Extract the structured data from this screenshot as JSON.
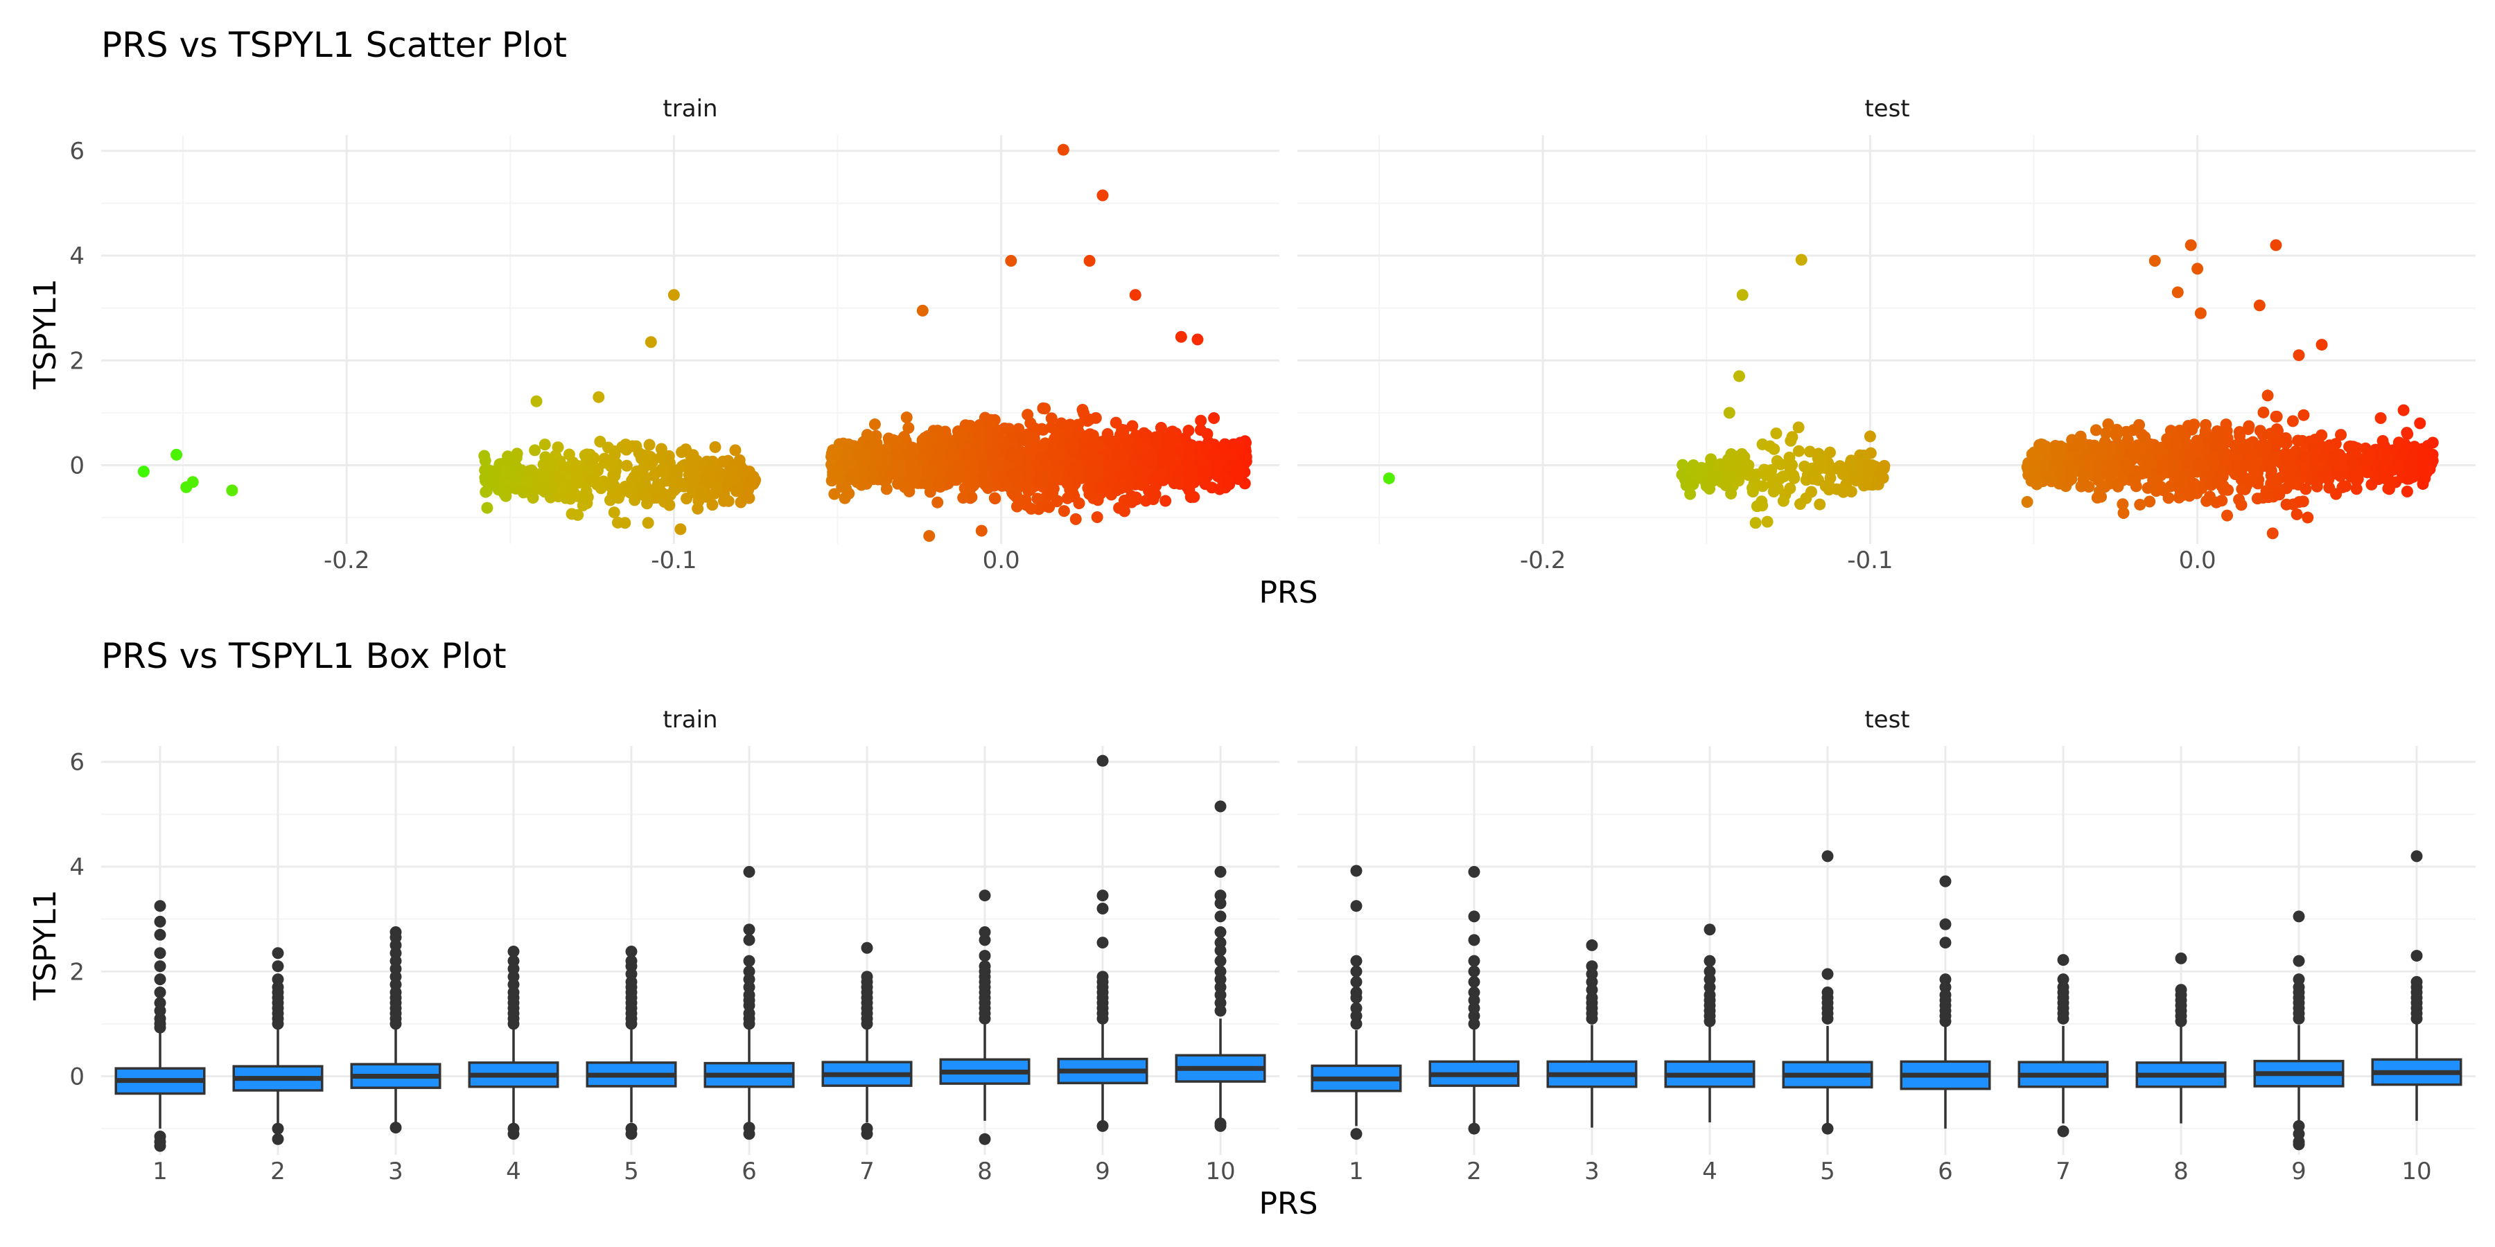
{
  "colors": {
    "background": "#ffffff",
    "grid_major": "#ebebeb",
    "grid_minor": "#f4f4f4",
    "box_fill": "#1e90ff",
    "box_line": "#333333",
    "scatter_low": "#33ff00",
    "scatter_mid": "#c8b400",
    "scatter_high": "#ff1a00"
  },
  "chart_data": [
    {
      "type": "scatter",
      "title": "PRS vs TSPYL1 Scatter Plot",
      "xlabel": "PRS",
      "ylabel": "TSPYL1",
      "facets": [
        "train",
        "test"
      ],
      "xlim": [
        -0.275,
        0.085
      ],
      "ylim": [
        -1.5,
        6.3
      ],
      "x_ticks": [
        -0.2,
        -0.1,
        0.0
      ],
      "x_tick_labels": [
        "-0.2",
        "-0.1",
        "0.0"
      ],
      "y_ticks": [
        0,
        2,
        4,
        6
      ],
      "y_tick_labels": [
        "0",
        "2",
        "4",
        "6"
      ],
      "color_scale": "gradient green (low PRS) to red (high PRS)",
      "grid": true,
      "clusters": {
        "train": [
          {
            "x_range": [
              -0.158,
              -0.075
            ],
            "y_center": -0.25,
            "y_sd": 0.35,
            "n": 420
          },
          {
            "x_range": [
              -0.052,
              0.075
            ],
            "y_center": 0.05,
            "y_sd": 0.42,
            "n": 1500
          }
        ],
        "test": [
          {
            "x_range": [
              -0.158,
              -0.095
            ],
            "y_center": -0.2,
            "y_sd": 0.32,
            "n": 200
          },
          {
            "x_range": [
              -0.052,
              0.072
            ],
            "y_center": 0.05,
            "y_sd": 0.4,
            "n": 900
          }
        ]
      },
      "points": {
        "train": [
          {
            "x": -0.262,
            "y": -0.12
          },
          {
            "x": -0.252,
            "y": 0.2
          },
          {
            "x": -0.249,
            "y": -0.42
          },
          {
            "x": -0.247,
            "y": -0.32
          },
          {
            "x": -0.235,
            "y": -0.48
          },
          {
            "x": -0.1,
            "y": 3.25
          },
          {
            "x": -0.107,
            "y": 2.35
          },
          {
            "x": -0.123,
            "y": 1.3
          },
          {
            "x": -0.142,
            "y": 1.22
          },
          {
            "x": -0.098,
            "y": -1.22
          },
          {
            "x": -0.08,
            "y": 0.05
          },
          {
            "x": -0.085,
            "y": 0.07
          },
          {
            "x": 0.019,
            "y": 6.02
          },
          {
            "x": 0.031,
            "y": 5.15
          },
          {
            "x": 0.003,
            "y": 3.9
          },
          {
            "x": 0.027,
            "y": 3.9
          },
          {
            "x": 0.041,
            "y": 3.25
          },
          {
            "x": -0.024,
            "y": 2.95
          },
          {
            "x": 0.055,
            "y": 2.45
          },
          {
            "x": 0.06,
            "y": 2.4
          },
          {
            "x": 0.071,
            "y": 0.4
          },
          {
            "x": 0.065,
            "y": 0.9
          },
          {
            "x": 0.061,
            "y": 0.85
          },
          {
            "x": -0.051,
            "y": -0.55
          },
          {
            "x": -0.022,
            "y": -1.35
          },
          {
            "x": -0.006,
            "y": -1.25
          }
        ],
        "test": [
          {
            "x": -0.247,
            "y": -0.25
          },
          {
            "x": -0.121,
            "y": 3.92
          },
          {
            "x": -0.139,
            "y": 3.25
          },
          {
            "x": -0.14,
            "y": 1.7
          },
          {
            "x": -0.143,
            "y": 1.0
          },
          {
            "x": -0.135,
            "y": -1.1
          },
          {
            "x": -0.155,
            "y": -0.55
          },
          {
            "x": -0.1,
            "y": 0.55
          },
          {
            "x": -0.002,
            "y": 4.2
          },
          {
            "x": 0.024,
            "y": 4.2
          },
          {
            "x": -0.013,
            "y": 3.9
          },
          {
            "x": 0.0,
            "y": 3.75
          },
          {
            "x": -0.006,
            "y": 3.3
          },
          {
            "x": 0.019,
            "y": 3.05
          },
          {
            "x": 0.001,
            "y": 2.9
          },
          {
            "x": 0.031,
            "y": 2.1
          },
          {
            "x": 0.038,
            "y": 2.3
          },
          {
            "x": 0.063,
            "y": 1.05
          },
          {
            "x": 0.056,
            "y": 0.9
          },
          {
            "x": 0.068,
            "y": 0.8
          },
          {
            "x": 0.07,
            "y": 0.0
          },
          {
            "x": 0.064,
            "y": 0.62
          },
          {
            "x": 0.065,
            "y": 0.1
          },
          {
            "x": -0.052,
            "y": -0.7
          },
          {
            "x": -0.045,
            "y": -0.25
          },
          {
            "x": 0.023,
            "y": -1.3
          }
        ]
      }
    },
    {
      "type": "box",
      "title": "PRS vs TSPYL1 Box Plot",
      "xlabel": "PRS",
      "ylabel": "TSPYL1",
      "facets": [
        "train",
        "test"
      ],
      "categories": [
        "1",
        "2",
        "3",
        "4",
        "5",
        "6",
        "7",
        "8",
        "9",
        "10"
      ],
      "ylim": [
        -1.5,
        6.3
      ],
      "y_ticks": [
        0,
        2,
        4,
        6
      ],
      "y_tick_labels": [
        "0",
        "2",
        "4",
        "6"
      ],
      "grid": true,
      "boxes": {
        "train": [
          {
            "q1": -0.33,
            "median": -0.08,
            "q3": 0.15,
            "whisker_low": -1.0,
            "whisker_high": 0.85,
            "outliers": [
              3.25,
              2.95,
              2.7,
              2.35,
              2.1,
              1.85,
              1.6,
              1.4,
              1.25,
              1.1,
              1.0,
              0.93,
              -1.15,
              -1.25,
              -1.33
            ]
          },
          {
            "q1": -0.27,
            "median": -0.04,
            "q3": 0.19,
            "whisker_low": -0.95,
            "whisker_high": 0.9,
            "outliers": [
              2.35,
              2.1,
              1.85,
              1.7,
              1.6,
              1.5,
              1.4,
              1.3,
              1.2,
              1.1,
              1.0,
              -1.0,
              -1.2
            ]
          },
          {
            "q1": -0.22,
            "median": 0.0,
            "q3": 0.23,
            "whisker_low": -0.9,
            "whisker_high": 0.92,
            "outliers": [
              2.75,
              2.65,
              2.5,
              2.35,
              2.2,
              2.05,
              1.9,
              1.75,
              1.6,
              1.5,
              1.4,
              1.3,
              1.2,
              1.1,
              1.0,
              -0.98
            ]
          },
          {
            "q1": -0.2,
            "median": 0.02,
            "q3": 0.26,
            "whisker_low": -0.9,
            "whisker_high": 0.95,
            "outliers": [
              2.38,
              2.2,
              2.05,
              1.9,
              1.75,
              1.6,
              1.5,
              1.4,
              1.3,
              1.2,
              1.1,
              1.0,
              -1.0,
              -1.1
            ]
          },
          {
            "q1": -0.19,
            "median": 0.02,
            "q3": 0.26,
            "whisker_low": -0.88,
            "whisker_high": 0.95,
            "outliers": [
              2.38,
              2.2,
              2.1,
              1.95,
              1.8,
              1.7,
              1.6,
              1.5,
              1.4,
              1.3,
              1.2,
              1.1,
              1.0,
              -1.0,
              -1.1
            ]
          },
          {
            "q1": -0.2,
            "median": 0.02,
            "q3": 0.25,
            "whisker_low": -0.88,
            "whisker_high": 0.93,
            "outliers": [
              3.9,
              2.8,
              2.6,
              2.2,
              2.0,
              1.85,
              1.7,
              1.55,
              1.45,
              1.35,
              1.2,
              1.1,
              1.0,
              -0.98,
              -1.1
            ]
          },
          {
            "q1": -0.18,
            "median": 0.03,
            "q3": 0.27,
            "whisker_low": -0.88,
            "whisker_high": 0.95,
            "outliers": [
              2.45,
              1.9,
              1.8,
              1.7,
              1.6,
              1.5,
              1.4,
              1.3,
              1.2,
              1.1,
              1.0,
              -1.0,
              -1.1
            ]
          },
          {
            "q1": -0.14,
            "median": 0.08,
            "q3": 0.32,
            "whisker_low": -0.85,
            "whisker_high": 1.0,
            "outliers": [
              3.45,
              2.75,
              2.6,
              2.3,
              2.1,
              2.0,
              1.9,
              1.8,
              1.7,
              1.6,
              1.5,
              1.4,
              1.3,
              1.2,
              1.1,
              -1.2
            ]
          },
          {
            "q1": -0.13,
            "median": 0.1,
            "q3": 0.33,
            "whisker_low": -0.85,
            "whisker_high": 1.02,
            "outliers": [
              6.02,
              3.45,
              3.2,
              2.55,
              1.9,
              1.8,
              1.7,
              1.6,
              1.5,
              1.4,
              1.3,
              1.2,
              1.1,
              -0.95
            ]
          },
          {
            "q1": -0.1,
            "median": 0.15,
            "q3": 0.4,
            "whisker_low": -0.8,
            "whisker_high": 1.1,
            "outliers": [
              5.15,
              3.9,
              3.45,
              3.3,
              3.05,
              2.75,
              2.55,
              2.4,
              2.2,
              2.0,
              1.85,
              1.7,
              1.55,
              1.4,
              1.25,
              -0.9,
              -0.95
            ]
          }
        ],
        "test": [
          {
            "q1": -0.28,
            "median": -0.05,
            "q3": 0.2,
            "whisker_low": -0.95,
            "whisker_high": 0.88,
            "outliers": [
              3.92,
              3.25,
              2.2,
              2.0,
              1.8,
              1.6,
              1.5,
              1.3,
              1.15,
              1.0,
              -1.1
            ]
          },
          {
            "q1": -0.18,
            "median": 0.03,
            "q3": 0.28,
            "whisker_low": -0.9,
            "whisker_high": 0.95,
            "outliers": [
              3.9,
              3.05,
              2.6,
              2.2,
              2.0,
              1.8,
              1.6,
              1.45,
              1.3,
              1.15,
              1.0,
              -1.0
            ]
          },
          {
            "q1": -0.2,
            "median": 0.03,
            "q3": 0.28,
            "whisker_low": -0.98,
            "whisker_high": 0.98,
            "outliers": [
              2.5,
              2.1,
              1.95,
              1.8,
              1.65,
              1.5,
              1.4,
              1.3,
              1.2,
              1.1
            ]
          },
          {
            "q1": -0.2,
            "median": 0.02,
            "q3": 0.28,
            "whisker_low": -0.88,
            "whisker_high": 0.98,
            "outliers": [
              2.8,
              2.2,
              2.0,
              1.85,
              1.7,
              1.55,
              1.45,
              1.35,
              1.25,
              1.15,
              1.05
            ]
          },
          {
            "q1": -0.21,
            "median": 0.02,
            "q3": 0.27,
            "whisker_low": -0.9,
            "whisker_high": 0.96,
            "outliers": [
              4.2,
              1.95,
              1.6,
              1.5,
              1.4,
              1.3,
              1.2,
              1.1,
              -1.0
            ]
          },
          {
            "q1": -0.24,
            "median": 0.02,
            "q3": 0.28,
            "whisker_low": -1.0,
            "whisker_high": 0.98,
            "outliers": [
              3.72,
              2.9,
              2.55,
              1.85,
              1.7,
              1.55,
              1.45,
              1.35,
              1.25,
              1.15,
              1.05
            ]
          },
          {
            "q1": -0.2,
            "median": 0.02,
            "q3": 0.27,
            "whisker_low": -0.9,
            "whisker_high": 0.96,
            "outliers": [
              2.22,
              1.85,
              1.7,
              1.6,
              1.5,
              1.4,
              1.3,
              1.2,
              1.1,
              -1.05
            ]
          },
          {
            "q1": -0.2,
            "median": 0.02,
            "q3": 0.26,
            "whisker_low": -0.9,
            "whisker_high": 0.95,
            "outliers": [
              2.25,
              1.65,
              1.55,
              1.45,
              1.35,
              1.25,
              1.15,
              1.05
            ]
          },
          {
            "q1": -0.19,
            "median": 0.05,
            "q3": 0.29,
            "whisker_low": -0.85,
            "whisker_high": 0.98,
            "outliers": [
              3.05,
              2.2,
              1.85,
              1.7,
              1.6,
              1.5,
              1.4,
              1.3,
              1.2,
              1.1,
              -0.95,
              -1.1,
              -1.25,
              -1.3
            ]
          },
          {
            "q1": -0.16,
            "median": 0.07,
            "q3": 0.32,
            "whisker_low": -0.85,
            "whisker_high": 1.0,
            "outliers": [
              4.2,
              2.3,
              1.8,
              1.7,
              1.6,
              1.5,
              1.4,
              1.3,
              1.2,
              1.1
            ]
          }
        ]
      }
    }
  ]
}
